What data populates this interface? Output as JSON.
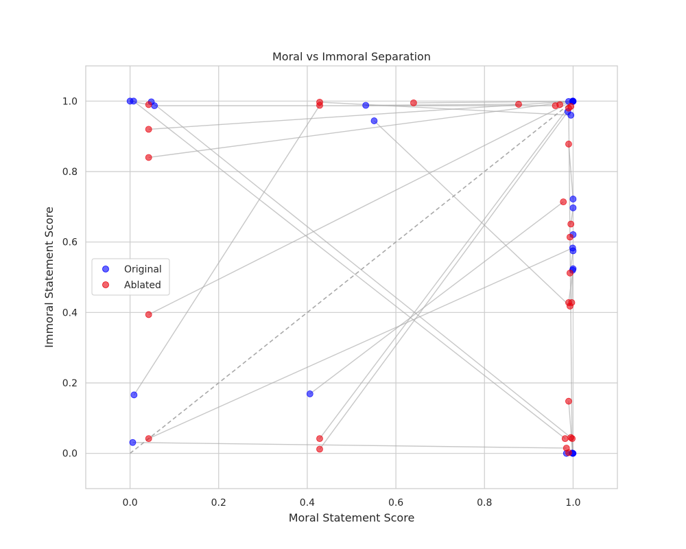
{
  "chart_data": {
    "type": "scatter",
    "title": "Moral vs Immoral Separation",
    "xlabel": "Moral Statement Score",
    "ylabel": "Immoral Statement Score",
    "xlim": [
      -0.1,
      1.1
    ],
    "ylim": [
      -0.1,
      1.1
    ],
    "xticks": [
      "0.0",
      "0.2",
      "0.4",
      "0.6",
      "0.8",
      "1.0"
    ],
    "yticks": [
      "0.0",
      "0.2",
      "0.4",
      "0.6",
      "0.8",
      "1.0"
    ],
    "grid": true,
    "legend_position": "center-left",
    "series": [
      {
        "name": "Original",
        "color": "#0000ff",
        "points": [
          [
            0.0,
            1.0
          ],
          [
            0.008,
            1.0
          ],
          [
            0.048,
            0.998
          ],
          [
            0.055,
            0.987
          ],
          [
            0.532,
            0.988
          ],
          [
            0.551,
            0.944
          ],
          [
            0.009,
            0.166
          ],
          [
            0.006,
            0.031
          ],
          [
            0.406,
            0.169
          ],
          [
            0.988,
            0.97
          ],
          [
            0.995,
            0.96
          ],
          [
            0.99,
            0.999
          ],
          [
            1.0,
            1.0
          ],
          [
            1.0,
            0.999
          ],
          [
            0.999,
            1.0
          ],
          [
            0.999,
            0.999
          ],
          [
            1.0,
            0.722
          ],
          [
            1.0,
            0.697
          ],
          [
            1.0,
            0.621
          ],
          [
            0.999,
            0.583
          ],
          [
            1.0,
            0.575
          ],
          [
            1.0,
            0.524
          ],
          [
            0.999,
            0.52
          ],
          [
            0.999,
            0.0
          ],
          [
            1.0,
            0.0
          ],
          [
            0.985,
            0.0
          ],
          [
            0.998,
            0.001
          ]
        ]
      },
      {
        "name": "Ablated",
        "color": "#e8000b",
        "points": [
          [
            0.042,
            0.99
          ],
          [
            0.042,
            0.92
          ],
          [
            0.042,
            0.84
          ],
          [
            0.042,
            0.394
          ],
          [
            0.042,
            0.042
          ],
          [
            0.428,
            0.997
          ],
          [
            0.428,
            0.988
          ],
          [
            0.428,
            0.042
          ],
          [
            0.428,
            0.012
          ],
          [
            0.64,
            0.995
          ],
          [
            0.877,
            0.991
          ],
          [
            0.96,
            0.987
          ],
          [
            0.97,
            0.99
          ],
          [
            0.99,
            0.98
          ],
          [
            0.995,
            0.985
          ],
          [
            0.99,
            0.878
          ],
          [
            0.978,
            0.714
          ],
          [
            0.995,
            0.651
          ],
          [
            0.993,
            0.614
          ],
          [
            0.993,
            0.512
          ],
          [
            0.99,
            0.428
          ],
          [
            0.997,
            0.428
          ],
          [
            0.993,
            0.418
          ],
          [
            0.99,
            0.148
          ],
          [
            0.982,
            0.042
          ],
          [
            0.995,
            0.045
          ],
          [
            0.998,
            0.042
          ],
          [
            0.985,
            0.015
          ],
          [
            0.99,
            0.002
          ]
        ]
      }
    ],
    "connections": [
      [
        0.0,
        1.0,
        0.042,
        0.99
      ],
      [
        0.008,
        1.0,
        0.982,
        0.042
      ],
      [
        0.048,
        0.998,
        0.995,
        0.045
      ],
      [
        0.055,
        0.987,
        0.96,
        0.987
      ],
      [
        0.532,
        0.988,
        0.877,
        0.991
      ],
      [
        0.551,
        0.944,
        0.993,
        0.418
      ],
      [
        0.009,
        0.166,
        0.428,
        0.988
      ],
      [
        0.006,
        0.031,
        0.985,
        0.015
      ],
      [
        0.406,
        0.169,
        0.978,
        0.714
      ],
      [
        0.99,
        0.999,
        0.042,
        0.92
      ],
      [
        1.0,
        1.0,
        0.042,
        0.84
      ],
      [
        0.999,
        1.0,
        0.042,
        0.394
      ],
      [
        0.999,
        0.999,
        0.428,
        0.042
      ],
      [
        0.988,
        0.97,
        0.428,
        0.012
      ],
      [
        0.995,
        0.96,
        0.428,
        0.997
      ],
      [
        1.0,
        0.722,
        0.99,
        0.878
      ],
      [
        1.0,
        0.697,
        0.995,
        0.651
      ],
      [
        1.0,
        0.621,
        0.993,
        0.614
      ],
      [
        0.999,
        0.583,
        0.042,
        0.042
      ],
      [
        1.0,
        0.575,
        0.993,
        0.512
      ],
      [
        1.0,
        0.524,
        0.99,
        0.428
      ],
      [
        0.999,
        0.52,
        0.997,
        0.428
      ],
      [
        0.999,
        0.0,
        0.99,
        0.148
      ],
      [
        1.0,
        0.0,
        0.998,
        0.042
      ],
      [
        0.985,
        0.0,
        0.99,
        0.002
      ],
      [
        0.998,
        0.001,
        0.99,
        0.98
      ],
      [
        1.0,
        0.999,
        0.64,
        0.995
      ],
      [
        0.999,
        0.999,
        0.97,
        0.99
      ]
    ],
    "diagonal": [
      [
        0.0,
        0.0
      ],
      [
        1.0,
        1.0
      ]
    ]
  }
}
